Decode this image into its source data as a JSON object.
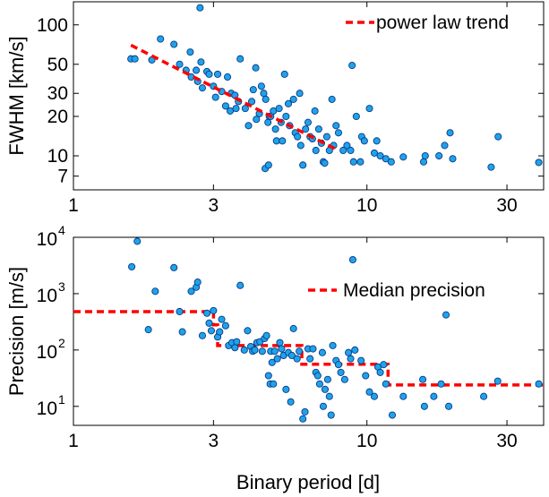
{
  "chart_data": [
    {
      "type": "scatter",
      "ylabel": "FWHM [km/s]",
      "xlabel": "",
      "x_scale": "log",
      "y_scale": "log",
      "xlim": [
        1,
        40
      ],
      "ylim": [
        5.5,
        150
      ],
      "x_ticks": [
        1,
        3,
        10,
        30
      ],
      "x_tick_labels": [
        "1",
        "3",
        "10",
        "30"
      ],
      "y_ticks": [
        7,
        10,
        20,
        30,
        50,
        100
      ],
      "y_tick_labels": [
        "7",
        "10",
        "20",
        "30",
        "50",
        "100"
      ],
      "grid": false,
      "legend_position": "top-right",
      "marker_color": "#1fa3e8",
      "trend_color": "#ff0000",
      "series": [
        {
          "kind": "points",
          "points": [
            [
              1.57,
              55
            ],
            [
              1.62,
              55
            ],
            [
              1.85,
              54
            ],
            [
              1.98,
              78
            ],
            [
              2.2,
              71
            ],
            [
              2.3,
              50
            ],
            [
              2.42,
              45
            ],
            [
              2.52,
              40
            ],
            [
              2.65,
              37
            ],
            [
              2.5,
              62
            ],
            [
              2.7,
              135
            ],
            [
              2.72,
              52
            ],
            [
              2.85,
              44
            ],
            [
              2.9,
              42
            ],
            [
              2.62,
              45
            ],
            [
              2.75,
              33
            ],
            [
              3.1,
              42
            ],
            [
              3.0,
              34
            ],
            [
              3.05,
              28
            ],
            [
              3.2,
              31
            ],
            [
              3.35,
              40
            ],
            [
              3.45,
              30
            ],
            [
              3.55,
              29
            ],
            [
              3.3,
              24
            ],
            [
              3.42,
              22
            ],
            [
              3.58,
              23
            ],
            [
              3.65,
              26
            ],
            [
              3.7,
              55
            ],
            [
              3.85,
              23
            ],
            [
              3.95,
              17
            ],
            [
              4.05,
              26
            ],
            [
              4.1,
              32
            ],
            [
              4.18,
              47
            ],
            [
              4.2,
              19
            ],
            [
              4.3,
              21
            ],
            [
              4.37,
              34
            ],
            [
              4.45,
              30
            ],
            [
              4.52,
              27
            ],
            [
              4.6,
              18
            ],
            [
              4.65,
              20
            ],
            [
              4.7,
              20
            ],
            [
              4.5,
              8
            ],
            [
              4.62,
              8.5
            ],
            [
              4.8,
              22
            ],
            [
              4.88,
              16
            ],
            [
              4.92,
              13
            ],
            [
              5.02,
              23
            ],
            [
              5.1,
              18
            ],
            [
              5.15,
              13
            ],
            [
              5.24,
              42
            ],
            [
              5.3,
              20
            ],
            [
              5.4,
              25
            ],
            [
              5.45,
              17
            ],
            [
              5.62,
              27
            ],
            [
              5.7,
              15
            ],
            [
              5.8,
              14
            ],
            [
              5.9,
              30
            ],
            [
              5.95,
              12
            ],
            [
              6.05,
              8.5
            ],
            [
              6.18,
              16
            ],
            [
              6.3,
              18
            ],
            [
              6.4,
              14
            ],
            [
              6.52,
              13.5
            ],
            [
              6.65,
              22
            ],
            [
              6.7,
              11
            ],
            [
              6.85,
              16
            ],
            [
              7.0,
              12.5
            ],
            [
              7.1,
              9
            ],
            [
              7.18,
              8.8
            ],
            [
              7.3,
              14
            ],
            [
              7.45,
              11
            ],
            [
              7.6,
              27
            ],
            [
              7.7,
              12
            ],
            [
              7.85,
              17
            ],
            [
              8.0,
              15
            ],
            [
              8.3,
              11
            ],
            [
              8.55,
              12
            ],
            [
              8.8,
              11
            ],
            [
              8.9,
              49
            ],
            [
              9.0,
              9
            ],
            [
              9.2,
              20
            ],
            [
              9.5,
              9
            ],
            [
              9.6,
              14
            ],
            [
              9.8,
              13
            ],
            [
              10.2,
              23
            ],
            [
              10.6,
              10.5
            ],
            [
              10.8,
              13
            ],
            [
              11.1,
              10
            ],
            [
              11.6,
              9.5
            ],
            [
              12.1,
              9
            ],
            [
              13.3,
              9.8
            ],
            [
              15.6,
              9
            ],
            [
              15.8,
              10
            ],
            [
              17.6,
              10
            ],
            [
              18.4,
              12
            ],
            [
              19.2,
              15
            ],
            [
              19.6,
              9.5
            ],
            [
              26.5,
              8.2
            ],
            [
              28.0,
              14
            ],
            [
              38.5,
              8.9
            ]
          ]
        },
        {
          "kind": "line",
          "name": "power law trend",
          "points": [
            [
              1.57,
              70
            ],
            [
              8.0,
              11
            ]
          ]
        }
      ]
    },
    {
      "type": "scatter",
      "ylabel": "Precision [m/s]",
      "xlabel": "Binary period [d]",
      "x_scale": "log",
      "y_scale": "log",
      "xlim": [
        1,
        40
      ],
      "ylim": [
        4.6,
        10000
      ],
      "x_ticks": [
        1,
        3,
        10,
        30
      ],
      "x_tick_labels": [
        "1",
        "3",
        "10",
        "30"
      ],
      "y_ticks": [
        10,
        100,
        1000,
        10000
      ],
      "y_tick_labels": [
        {
          "base": "10",
          "exp": "1"
        },
        {
          "base": "10",
          "exp": "2"
        },
        {
          "base": "10",
          "exp": "3"
        },
        {
          "base": "10",
          "exp": "4"
        }
      ],
      "grid": false,
      "legend_position": "top-right",
      "marker_color": "#1fa3e8",
      "trend_color": "#ff0000",
      "series": [
        {
          "kind": "points",
          "points": [
            [
              1.58,
              3000
            ],
            [
              1.65,
              8500
            ],
            [
              1.8,
              230
            ],
            [
              1.9,
              1100
            ],
            [
              2.2,
              2900
            ],
            [
              2.3,
              480
            ],
            [
              2.35,
              210
            ],
            [
              2.52,
              1100
            ],
            [
              2.62,
              1300
            ],
            [
              2.65,
              1600
            ],
            [
              2.75,
              180
            ],
            [
              2.85,
              450
            ],
            [
              2.9,
              300
            ],
            [
              2.95,
              220
            ],
            [
              3.0,
              500
            ],
            [
              3.1,
              170
            ],
            [
              3.15,
              210
            ],
            [
              3.2,
              350
            ],
            [
              3.3,
              270
            ],
            [
              3.38,
              120
            ],
            [
              3.47,
              135
            ],
            [
              3.55,
              110
            ],
            [
              3.6,
              140
            ],
            [
              3.7,
              1400
            ],
            [
              3.82,
              100
            ],
            [
              3.92,
              220
            ],
            [
              4.02,
              115
            ],
            [
              4.08,
              95
            ],
            [
              4.15,
              100
            ],
            [
              4.22,
              135
            ],
            [
              4.32,
              140
            ],
            [
              4.4,
              95
            ],
            [
              4.48,
              160
            ],
            [
              4.55,
              180
            ],
            [
              4.62,
              35
            ],
            [
              4.68,
              25
            ],
            [
              4.7,
              95
            ],
            [
              4.75,
              60
            ],
            [
              4.8,
              25
            ],
            [
              4.85,
              95
            ],
            [
              4.95,
              70
            ],
            [
              5.05,
              135
            ],
            [
              5.12,
              105
            ],
            [
              5.2,
              80
            ],
            [
              5.3,
              20
            ],
            [
              5.4,
              90
            ],
            [
              5.5,
              12
            ],
            [
              5.55,
              80
            ],
            [
              5.62,
              240
            ],
            [
              5.78,
              70
            ],
            [
              5.88,
              95
            ],
            [
              6.05,
              6
            ],
            [
              6.15,
              8
            ],
            [
              6.3,
              105
            ],
            [
              6.4,
              70
            ],
            [
              6.55,
              105
            ],
            [
              6.7,
              40
            ],
            [
              6.8,
              35
            ],
            [
              6.9,
              25
            ],
            [
              7.05,
              90
            ],
            [
              7.1,
              10
            ],
            [
              7.2,
              20
            ],
            [
              7.35,
              30
            ],
            [
              7.45,
              15
            ],
            [
              7.55,
              7
            ],
            [
              7.65,
              120
            ],
            [
              7.85,
              65
            ],
            [
              8.0,
              55
            ],
            [
              8.15,
              40
            ],
            [
              8.4,
              30
            ],
            [
              8.65,
              90
            ],
            [
              8.8,
              70
            ],
            [
              8.95,
              4000
            ],
            [
              9.1,
              100
            ],
            [
              9.55,
              65
            ],
            [
              9.9,
              35
            ],
            [
              10.2,
              18
            ],
            [
              10.6,
              15
            ],
            [
              10.9,
              50
            ],
            [
              11.1,
              40
            ],
            [
              11.4,
              55
            ],
            [
              11.6,
              25
            ],
            [
              12.2,
              7
            ],
            [
              13.3,
              15
            ],
            [
              15.5,
              30
            ],
            [
              15.7,
              10
            ],
            [
              16.9,
              15
            ],
            [
              17.9,
              25
            ],
            [
              18.6,
              420
            ],
            [
              19.0,
              10
            ],
            [
              25.0,
              15
            ],
            [
              27.9,
              28
            ],
            [
              38.5,
              25
            ]
          ]
        },
        {
          "kind": "step",
          "name": "Median precision",
          "points": [
            [
              1,
              480
            ],
            [
              3.0,
              480
            ],
            [
              3.0,
              280
            ],
            [
              3.1,
              280
            ],
            [
              3.1,
              120
            ],
            [
              6.0,
              120
            ],
            [
              6.0,
              56
            ],
            [
              11.8,
              56
            ],
            [
              11.8,
              24
            ],
            [
              40,
              24
            ]
          ]
        }
      ]
    }
  ]
}
